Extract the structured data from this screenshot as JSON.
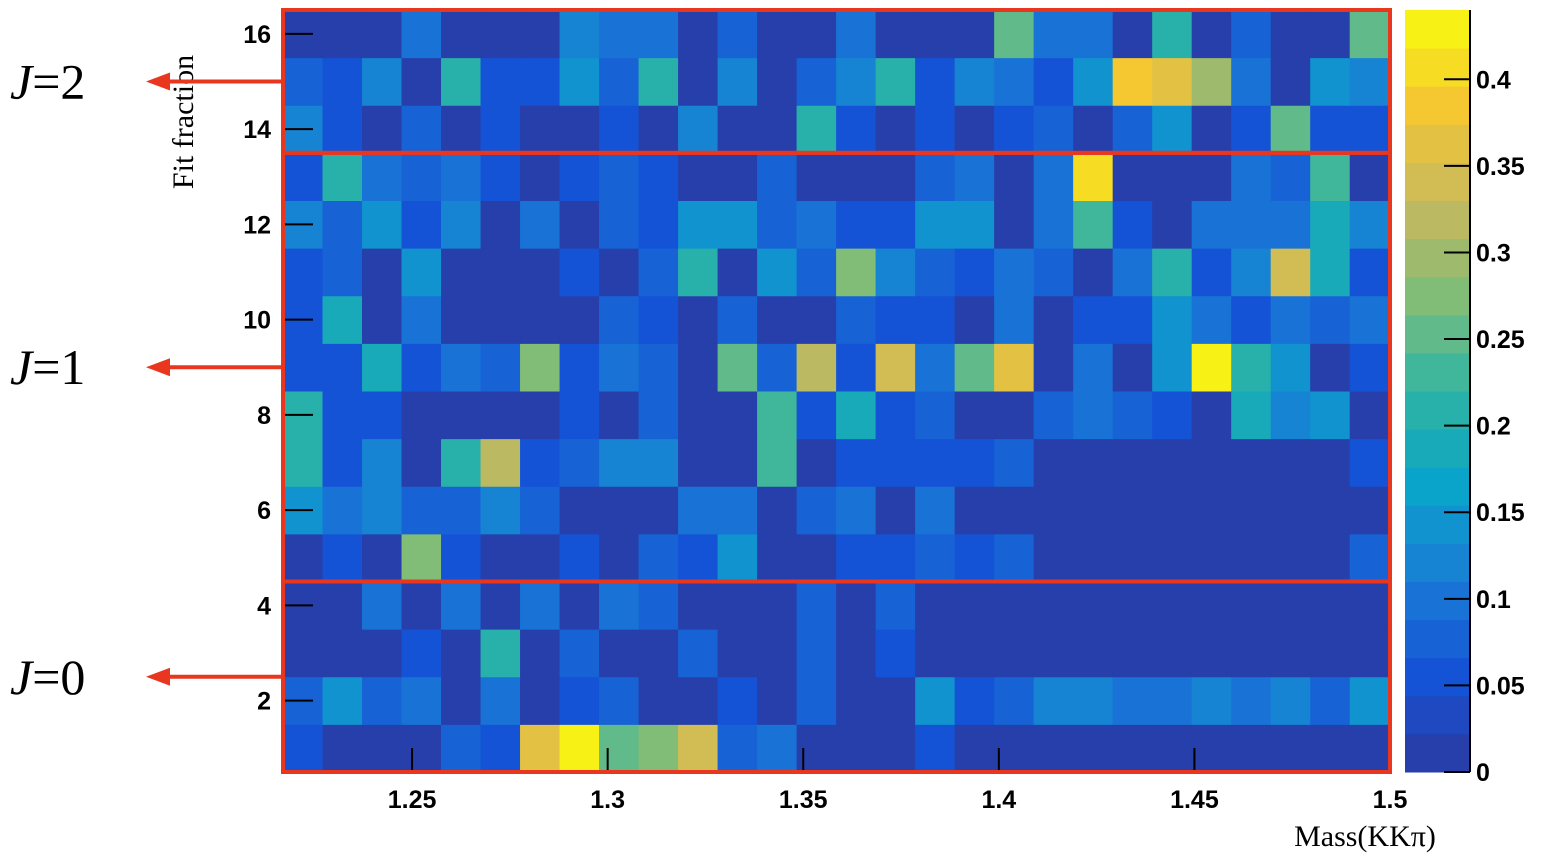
{
  "chart_data": {
    "type": "heatmap",
    "x_title": "Mass(KKπ)",
    "y_title": "Fit fraction",
    "xbins": [
      1.217,
      1.2271,
      1.2372,
      1.2473,
      1.2574,
      1.2675,
      1.2776,
      1.2877,
      1.2978,
      1.3079,
      1.318,
      1.3281,
      1.3382,
      1.3483,
      1.3584,
      1.3685,
      1.3786,
      1.3887,
      1.3988,
      1.4089,
      1.419,
      1.4291,
      1.4392,
      1.4493,
      1.4594,
      1.4695,
      1.4796,
      1.4897,
      1.5
    ],
    "ybins": [
      0.5,
      1.5,
      2.5,
      3.5,
      4.5,
      5.5,
      6.5,
      7.5,
      8.5,
      9.5,
      10.5,
      11.5,
      12.5,
      13.5,
      14.5,
      15.5,
      16.5
    ],
    "xlim": [
      1.217,
      1.5
    ],
    "ylim": [
      0.5,
      16.5
    ],
    "xticks": [
      1.25,
      1.3,
      1.35,
      1.4,
      1.45,
      1.5
    ],
    "yticks": [
      2,
      4,
      6,
      8,
      10,
      12,
      14,
      16
    ],
    "zlim": [
      0,
      0.44
    ],
    "zticks": [
      0,
      0.05,
      0.1,
      0.15,
      0.2,
      0.25,
      0.3,
      0.35,
      0.4
    ],
    "colorscale": [
      "#2b3a9f",
      "#1553d6",
      "#1a7bd6",
      "#0aa3c9",
      "#2fb5a2",
      "#82bd78",
      "#c9b95d",
      "#f5c832",
      "#f9fb0e"
    ],
    "z": [
      [
        0.05,
        0,
        0,
        0,
        0.07,
        0.05,
        0.36,
        0.44,
        0.25,
        0.28,
        0.34,
        0.07,
        0.1,
        0,
        0,
        0,
        0.05,
        0,
        0,
        0,
        0,
        0,
        0,
        0,
        0,
        0,
        0,
        0
      ],
      [
        0.07,
        0.15,
        0.07,
        0.1,
        0,
        0.1,
        0,
        0.05,
        0.07,
        0,
        0,
        0.05,
        0,
        0.07,
        0,
        0,
        0.15,
        0.05,
        0.07,
        0.12,
        0.12,
        0.1,
        0.1,
        0.12,
        0.1,
        0.12,
        0.07,
        0.15
      ],
      [
        0,
        0,
        0,
        0.05,
        0,
        0.2,
        0,
        0.07,
        0,
        0,
        0.07,
        0,
        0,
        0.07,
        0,
        0.05,
        0,
        0,
        0,
        0,
        0,
        0,
        0,
        0,
        0,
        0,
        0,
        0
      ],
      [
        0,
        0,
        0.1,
        0,
        0.1,
        0,
        0.1,
        0,
        0.1,
        0.07,
        0,
        0,
        0,
        0.07,
        0,
        0.07,
        0,
        0,
        0,
        0,
        0,
        0,
        0,
        0,
        0,
        0,
        0,
        0
      ],
      [
        0,
        0.05,
        0,
        0.27,
        0.05,
        0,
        0,
        0.05,
        0,
        0.07,
        0.05,
        0.15,
        0,
        0,
        0.05,
        0.05,
        0.07,
        0.05,
        0.07,
        0,
        0,
        0,
        0,
        0,
        0,
        0,
        0,
        0.07
      ],
      [
        0.15,
        0.1,
        0.12,
        0.07,
        0.07,
        0.12,
        0.07,
        0,
        0,
        0,
        0.1,
        0.1,
        0,
        0.07,
        0.1,
        0,
        0.1,
        0,
        0,
        0,
        0,
        0,
        0,
        0,
        0,
        0,
        0,
        0
      ],
      [
        0.2,
        0.05,
        0.12,
        0,
        0.2,
        0.32,
        0.05,
        0.07,
        0.12,
        0.12,
        0,
        0,
        0.22,
        0,
        0.05,
        0.05,
        0.05,
        0.05,
        0.07,
        0,
        0,
        0,
        0,
        0,
        0,
        0,
        0,
        0.05
      ],
      [
        0.2,
        0.05,
        0.05,
        0,
        0,
        0,
        0,
        0.05,
        0,
        0.07,
        0,
        0,
        0.22,
        0.05,
        0.18,
        0.05,
        0.07,
        0,
        0,
        0.07,
        0.1,
        0.07,
        0.05,
        0,
        0.18,
        0.12,
        0.15,
        0
      ],
      [
        0.05,
        0.05,
        0.18,
        0.05,
        0.1,
        0.07,
        0.28,
        0.05,
        0.1,
        0.07,
        0,
        0.25,
        0.07,
        0.31,
        0.05,
        0.34,
        0.1,
        0.25,
        0.36,
        0,
        0.1,
        0,
        0.15,
        0.44,
        0.2,
        0.15,
        0,
        0.05
      ],
      [
        0.05,
        0.18,
        0,
        0.1,
        0,
        0,
        0,
        0,
        0.07,
        0.05,
        0,
        0.07,
        0,
        0,
        0.07,
        0.05,
        0.05,
        0,
        0.1,
        0,
        0.05,
        0.05,
        0.15,
        0.1,
        0.05,
        0.1,
        0.07,
        0.1
      ],
      [
        0.05,
        0.07,
        0,
        0.15,
        0,
        0,
        0,
        0.05,
        0,
        0.07,
        0.2,
        0,
        0.15,
        0.07,
        0.27,
        0.12,
        0.07,
        0.05,
        0.1,
        0.07,
        0,
        0.1,
        0.2,
        0.05,
        0.12,
        0.33,
        0.18,
        0.05
      ],
      [
        0.12,
        0.07,
        0.15,
        0.05,
        0.12,
        0,
        0.1,
        0,
        0.07,
        0.05,
        0.15,
        0.15,
        0.07,
        0.1,
        0.05,
        0.05,
        0.15,
        0.15,
        0,
        0.1,
        0.22,
        0.05,
        0,
        0.1,
        0.1,
        0.1,
        0.18,
        0.12
      ],
      [
        0.05,
        0.2,
        0.1,
        0.07,
        0.1,
        0.05,
        0,
        0.05,
        0.07,
        0.05,
        0,
        0,
        0.07,
        0,
        0,
        0,
        0.07,
        0.1,
        0,
        0.1,
        0.4,
        0,
        0,
        0,
        0.1,
        0.07,
        0.22,
        0
      ],
      [
        0.12,
        0.05,
        0,
        0.07,
        0,
        0.05,
        0,
        0,
        0.05,
        0,
        0.12,
        0,
        0,
        0.2,
        0.05,
        0,
        0.05,
        0,
        0.05,
        0.07,
        0,
        0.07,
        0.15,
        0,
        0.05,
        0.25,
        0.05,
        0.05
      ],
      [
        0.07,
        0.05,
        0.12,
        0,
        0.2,
        0.05,
        0.05,
        0.15,
        0.07,
        0.2,
        0,
        0.12,
        0,
        0.07,
        0.12,
        0.2,
        0.05,
        0.12,
        0.1,
        0.05,
        0.15,
        0.38,
        0.36,
        0.3,
        0.1,
        0,
        0.15,
        0.12
      ],
      [
        0,
        0,
        0,
        0.1,
        0,
        0,
        0,
        0.12,
        0.1,
        0.1,
        0,
        0.07,
        0,
        0,
        0.1,
        0,
        0,
        0,
        0.25,
        0.1,
        0.1,
        0,
        0.2,
        0,
        0.07,
        0,
        0,
        0.25
      ]
    ],
    "regions": [
      {
        "var": "J",
        "text": "=2",
        "ylim": [
          13.5,
          16.5
        ]
      },
      {
        "var": "J",
        "text": "=1",
        "ylim": [
          4.5,
          13.5
        ]
      },
      {
        "var": "J",
        "text": "=0",
        "ylim": [
          0.5,
          4.5
        ]
      }
    ],
    "region_color": "#e8361f"
  }
}
